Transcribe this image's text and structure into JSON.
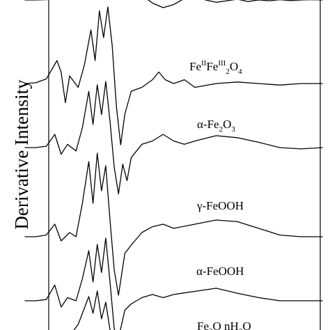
{
  "chart_data": {
    "type": "line",
    "ylabel": "Derivative Intensity",
    "series": [
      {
        "name": "",
        "points": [
          [
            0,
            0
          ],
          [
            5,
            0
          ],
          [
            10,
            0.02
          ],
          [
            15,
            0.06
          ],
          [
            20,
            0.1
          ],
          [
            25,
            0.2
          ],
          [
            30,
            0.4
          ],
          [
            35,
            0.7
          ],
          [
            40,
            0.95
          ],
          [
            45,
            1
          ],
          [
            50,
            0.8
          ],
          [
            55,
            0.3
          ],
          [
            60,
            -0.2
          ],
          [
            65,
            -0.5
          ],
          [
            70,
            -0.3
          ],
          [
            75,
            0.1
          ],
          [
            80,
            0.2
          ],
          [
            85,
            0
          ],
          [
            90,
            -0.15
          ],
          [
            95,
            -0.05
          ],
          [
            100,
            0.05
          ],
          [
            105,
            -0.1
          ],
          [
            110,
            0
          ],
          [
            115,
            -0.05
          ],
          [
            120,
            0.02
          ],
          [
            125,
            -0.04
          ],
          [
            130,
            0
          ],
          [
            135,
            0.02
          ],
          [
            140,
            0
          ]
        ]
      },
      {
        "name": "Fe(II)Fe(III)2O4",
        "points": [
          [
            0,
            0
          ],
          [
            5,
            0.01
          ],
          [
            10,
            0.06
          ],
          [
            15,
            0.3
          ],
          [
            17,
            0.15
          ],
          [
            19,
            -0.25
          ],
          [
            21,
            0.1
          ],
          [
            25,
            -0.05
          ],
          [
            28,
            0.25
          ],
          [
            31,
            0.7
          ],
          [
            33,
            0.3
          ],
          [
            35,
            0.95
          ],
          [
            37,
            0.6
          ],
          [
            39,
            1
          ],
          [
            41,
            0.5
          ],
          [
            43,
            -0.3
          ],
          [
            45,
            -0.8
          ],
          [
            47,
            -0.4
          ],
          [
            50,
            -0.1
          ],
          [
            55,
            -0.05
          ],
          [
            60,
            0.05
          ],
          [
            63,
            0.15
          ],
          [
            66,
            0.05
          ],
          [
            70,
            0
          ],
          [
            75,
            0.05
          ],
          [
            80,
            -0.05
          ],
          [
            90,
            0
          ],
          [
            100,
            0.02
          ],
          [
            110,
            0
          ],
          [
            120,
            -0.02
          ],
          [
            130,
            0
          ],
          [
            140,
            0
          ]
        ]
      },
      {
        "name": "alpha-Fe2O3",
        "points": [
          [
            0,
            0
          ],
          [
            5,
            0
          ],
          [
            10,
            0.02
          ],
          [
            14,
            0.2
          ],
          [
            17,
            -0.1
          ],
          [
            20,
            0.05
          ],
          [
            24,
            -0.05
          ],
          [
            27,
            0.3
          ],
          [
            30,
            0.85
          ],
          [
            32,
            0.35
          ],
          [
            34,
            0.95
          ],
          [
            36,
            0.5
          ],
          [
            38,
            1
          ],
          [
            40,
            0.4
          ],
          [
            42,
            -0.3
          ],
          [
            44,
            -0.7
          ],
          [
            46,
            -0.25
          ],
          [
            48,
            -0.5
          ],
          [
            50,
            -0.15
          ],
          [
            55,
            0.05
          ],
          [
            60,
            0.1
          ],
          [
            65,
            0.2
          ],
          [
            70,
            0.1
          ],
          [
            75,
            0.05
          ],
          [
            80,
            0.1
          ],
          [
            90,
            0.18
          ],
          [
            100,
            0.15
          ],
          [
            110,
            0.08
          ],
          [
            120,
            0
          ],
          [
            130,
            -0.02
          ],
          [
            140,
            0
          ]
        ]
      },
      {
        "name": "gamma-FeOOH",
        "points": [
          [
            0,
            0
          ],
          [
            5,
            0
          ],
          [
            10,
            0.02
          ],
          [
            14,
            0.15
          ],
          [
            17,
            -0.05
          ],
          [
            21,
            0.05
          ],
          [
            24,
            0.0
          ],
          [
            27,
            0.4
          ],
          [
            30,
            0.9
          ],
          [
            32,
            0.4
          ],
          [
            34,
            1
          ],
          [
            36,
            0.55
          ],
          [
            38,
            0.85
          ],
          [
            40,
            0.2
          ],
          [
            42,
            -0.4
          ],
          [
            44,
            -0.7
          ],
          [
            47,
            -0.2
          ],
          [
            50,
            -0.1
          ],
          [
            55,
            0.05
          ],
          [
            60,
            0.12
          ],
          [
            65,
            0.15
          ],
          [
            70,
            0.1
          ],
          [
            80,
            0.15
          ],
          [
            90,
            0.2
          ],
          [
            100,
            0.18
          ],
          [
            110,
            0.1
          ],
          [
            120,
            0.02
          ],
          [
            130,
            0
          ],
          [
            140,
            0
          ]
        ]
      },
      {
        "name": "alpha-FeOOH",
        "points": [
          [
            0,
            0
          ],
          [
            5,
            0
          ],
          [
            10,
            0.02
          ],
          [
            14,
            0.25
          ],
          [
            17,
            -0.1
          ],
          [
            20,
            0.05
          ],
          [
            24,
            0
          ],
          [
            27,
            0.35
          ],
          [
            30,
            0.8
          ],
          [
            32,
            0.3
          ],
          [
            34,
            0.9
          ],
          [
            36,
            0.45
          ],
          [
            38,
            1
          ],
          [
            40,
            0.3
          ],
          [
            42,
            -0.45
          ],
          [
            44,
            -0.6
          ],
          [
            47,
            -0.15
          ],
          [
            50,
            -0.05
          ],
          [
            55,
            0.05
          ],
          [
            60,
            0.1
          ],
          [
            65,
            0.05
          ],
          [
            70,
            0.1
          ],
          [
            80,
            0.15
          ],
          [
            90,
            0.2
          ],
          [
            100,
            0.12
          ],
          [
            110,
            0.05
          ],
          [
            120,
            0
          ],
          [
            130,
            0
          ],
          [
            140,
            0
          ]
        ]
      },
      {
        "name": "Fe2O3 nH2O",
        "points": [
          [
            0,
            0
          ],
          [
            10,
            0.02
          ],
          [
            20,
            0.05
          ],
          [
            25,
            0.3
          ],
          [
            30,
            0.8
          ],
          [
            32,
            0.5
          ],
          [
            34,
            0.9
          ],
          [
            36,
            0.4
          ],
          [
            38,
            0.7
          ],
          [
            40,
            0.2
          ],
          [
            45,
            0
          ],
          [
            50,
            0
          ],
          [
            60,
            0
          ],
          [
            70,
            0
          ],
          [
            80,
            0
          ],
          [
            90,
            0
          ],
          [
            100,
            0
          ],
          [
            110,
            0
          ],
          [
            120,
            0
          ],
          [
            130,
            0
          ],
          [
            140,
            0
          ]
        ]
      }
    ],
    "labels": [
      {
        "text_base": "Fe",
        "sup1": "II",
        "mid": "Fe",
        "sup2": "III",
        "sub1": "2",
        "tail": "O",
        "sub2": "4"
      },
      {
        "prefix": "α-Fe",
        "sub1": "2",
        "mid": "O",
        "sub2": "3"
      },
      {
        "text": "γ-FeOOH"
      },
      {
        "text": "α-FeOOH"
      },
      {
        "prefix": "Fe",
        "sub1": "2",
        "mid": "O",
        "sub2": "",
        "tail": "·nH",
        "sub3": "2",
        "tail2": "O"
      }
    ]
  }
}
